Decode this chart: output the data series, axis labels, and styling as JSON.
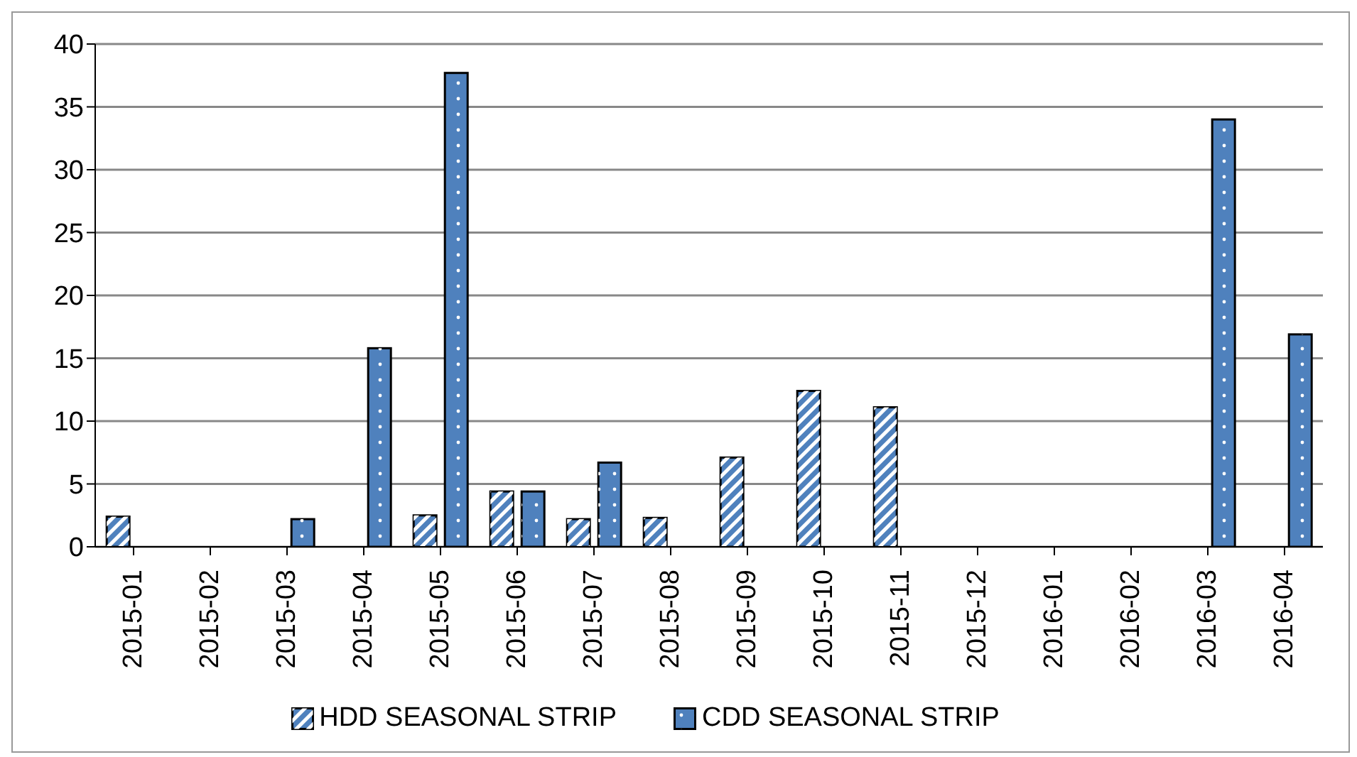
{
  "chart_data": {
    "type": "bar",
    "categories": [
      "2015-01",
      "2015-02",
      "2015-03",
      "2015-04",
      "2015-05",
      "2015-06",
      "2015-07",
      "2015-08",
      "2015-09",
      "2015-10",
      "2015-11",
      "2015-12",
      "2016-01",
      "2016-02",
      "2016-03",
      "2016-04"
    ],
    "series": [
      {
        "name": "HDD SEASONAL STRIP",
        "color": "#4f81bd",
        "values": [
          2.4,
          null,
          null,
          null,
          2.5,
          4.4,
          2.2,
          2.3,
          7.1,
          12.4,
          11.1,
          null,
          null,
          null,
          null,
          null
        ]
      },
      {
        "name": "CDD SEASONAL STRIP",
        "color": "#4f81bd",
        "values": [
          null,
          null,
          2.2,
          15.8,
          37.7,
          4.4,
          6.7,
          null,
          null,
          null,
          null,
          null,
          null,
          null,
          34.0,
          16.9
        ]
      }
    ],
    "ylim": [
      0,
      40
    ],
    "yticks": [
      0,
      5,
      10,
      15,
      20,
      25,
      30,
      35,
      40
    ],
    "grid": "y",
    "legend": "bottom"
  }
}
